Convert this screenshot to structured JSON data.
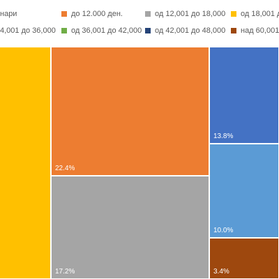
{
  "chart_data": {
    "type": "treemap",
    "legend_position": "top",
    "legend": [
      {
        "label": "нари",
        "color": "#4472c4"
      },
      {
        "label": "до 12.000 ден.",
        "color": "#ed7d31"
      },
      {
        "label": "од 12,001 до 18,000",
        "color": "#a5a5a5"
      },
      {
        "label": "од 18,001 до",
        "color": "#ffc000"
      },
      {
        "label": "4,001 до 36,000",
        "color": "#5b9bd5"
      },
      {
        "label": "од 36,001 до 42,000",
        "color": "#70ad47"
      },
      {
        "label": "од 42,001 до 48,000",
        "color": "#264478"
      },
      {
        "label": "над 60,001",
        "color": "#9e480e"
      }
    ],
    "rects": [
      {
        "color": "#ffc000",
        "label": ""
      },
      {
        "color": "#ed7d31",
        "label": "22.4%"
      },
      {
        "color": "#a5a5a5",
        "label": "17.2%"
      },
      {
        "color": "#4472c4",
        "label": "13.8%"
      },
      {
        "color": "#5b9bd5",
        "label": "10.0%"
      },
      {
        "color": "#9e480e",
        "label": "3.4%"
      }
    ]
  }
}
